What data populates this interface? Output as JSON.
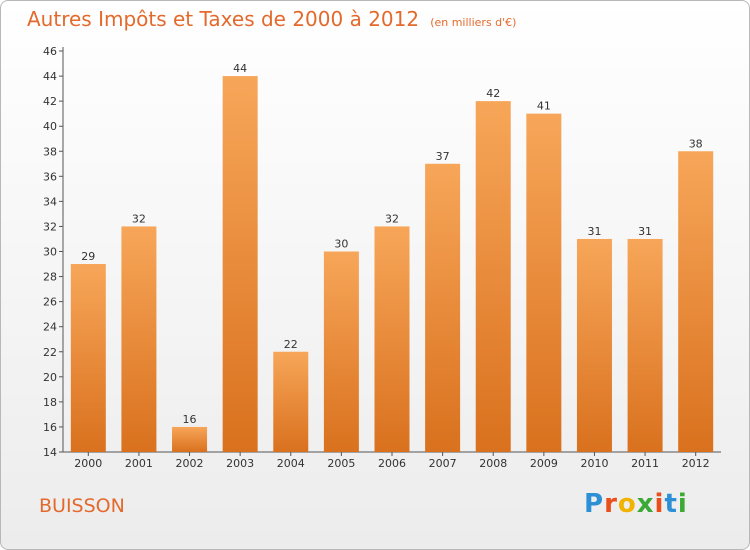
{
  "header": {
    "title": "Autres Impôts et Taxes de 2000 à 2012",
    "subtitle": "(en milliers d'€)"
  },
  "footer": {
    "place": "BUISSON",
    "logo_text": "Proxiti"
  },
  "colors": {
    "accent": "#e36a2c",
    "bar_top": "#f7a659",
    "bar_bottom": "#d9711e"
  },
  "chart_data": {
    "type": "bar",
    "title": "Autres Impôts et Taxes de 2000 à 2012",
    "subtitle": "(en milliers d'€)",
    "categories": [
      "2000",
      "2001",
      "2002",
      "2003",
      "2004",
      "2005",
      "2006",
      "2007",
      "2008",
      "2009",
      "2010",
      "2011",
      "2012"
    ],
    "values": [
      29,
      32,
      16,
      44,
      22,
      30,
      32,
      37,
      42,
      41,
      31,
      31,
      38
    ],
    "ylim": [
      14,
      46
    ],
    "yticks": [
      14,
      16,
      18,
      20,
      22,
      24,
      26,
      28,
      30,
      32,
      34,
      36,
      38,
      40,
      42,
      44,
      46
    ],
    "grid": false,
    "data_labels": true
  }
}
